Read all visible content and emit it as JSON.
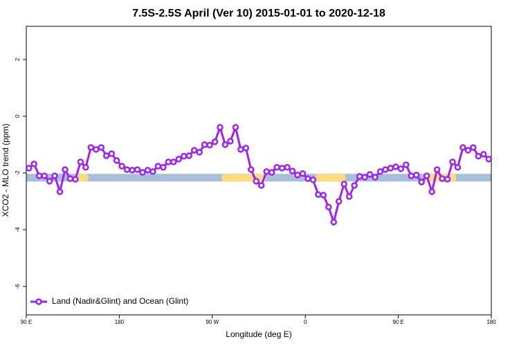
{
  "chart_data": {
    "type": "line",
    "title": "7.5S-2.5S April (Ver 10)   2015-01-01 to 2020-12-18",
    "x_label": "Longitude (deg E)",
    "y_label": "XCO2 - MLO trend (ppm)",
    "x": [
      92.5,
      97.5,
      102.5,
      107.5,
      112.5,
      117.5,
      122.5,
      127.5,
      132.5,
      137.5,
      142.5,
      147.5,
      152.5,
      157.5,
      162.5,
      167.5,
      172.5,
      177.5,
      182.5,
      187.5,
      192.5,
      197.5,
      202.5,
      207.5,
      212.5,
      217.5,
      222.5,
      227.5,
      232.5,
      237.5,
      242.5,
      247.5,
      252.5,
      257.5,
      262.5,
      267.5,
      272.5,
      277.5,
      282.5,
      287.5,
      292.5,
      297.5,
      302.5,
      307.5,
      312.5,
      317.5,
      322.5,
      327.5,
      332.5,
      337.5,
      342.5,
      347.5,
      352.5,
      357.5,
      362.5,
      367.5,
      372.5,
      377.5,
      382.5,
      387.5,
      392.5,
      397.5,
      402.5,
      407.5,
      412.5,
      417.5,
      422.5,
      427.5,
      432.5,
      437.5,
      442.5,
      447.5,
      452.5,
      457.5,
      462.5,
      467.5,
      472.5,
      477.5,
      482.5,
      487.5,
      492.5,
      497.5,
      502.5,
      507.5,
      512.5,
      517.5,
      522.5,
      527.5,
      532.5,
      537.5
    ],
    "series": [
      {
        "name": "Land (Nadir&Glint) and Ocean (Glint)",
        "color": "#a020f0",
        "values": [
          -1.83,
          -1.68,
          -2.1,
          -2.1,
          -2.29,
          -2.1,
          -2.66,
          -1.88,
          -2.2,
          -2.22,
          -1.61,
          -1.8,
          -1.1,
          -1.17,
          -1.1,
          -1.39,
          -1.32,
          -1.56,
          -1.76,
          -1.88,
          -1.9,
          -1.88,
          -1.98,
          -1.9,
          -1.95,
          -1.76,
          -1.8,
          -1.61,
          -1.61,
          -1.51,
          -1.41,
          -1.39,
          -1.2,
          -1.27,
          -1.0,
          -1.02,
          -0.9,
          -0.39,
          -1.0,
          -0.88,
          -0.39,
          -1.17,
          -1.12,
          -1.88,
          -2.29,
          -2.44,
          -1.95,
          -1.98,
          -1.8,
          -1.83,
          -1.8,
          -1.93,
          -2.07,
          -2.02,
          -2.2,
          -2.24,
          -2.76,
          -2.78,
          -3.2,
          -3.73,
          -3.0,
          -2.39,
          -2.83,
          -2.44,
          -2.12,
          -2.15,
          -2.05,
          -2.15,
          -1.95,
          -1.88,
          -1.83,
          -1.78,
          -1.85,
          -1.71,
          -2.1,
          -2.07,
          -2.32,
          -2.1,
          -2.66,
          -1.88,
          -2.2,
          -2.22,
          -1.61,
          -1.8,
          -1.1,
          -1.2,
          -1.1,
          -1.41,
          -1.34,
          -1.51
        ]
      }
    ],
    "band": {
      "range": [
        -2.3,
        -2.03
      ],
      "color": "#a8bfdc",
      "highlight_color": "#fddc7c",
      "highlights": [
        [
          137,
          150
        ],
        [
          279,
          322
        ],
        [
          370,
          399
        ],
        [
          476,
          506
        ]
      ]
    },
    "xlim": [
      90,
      540
    ],
    "xticks": [
      {
        "value": 90,
        "label": "90 E"
      },
      180,
      {
        "value": 270,
        "label": "90 W"
      },
      {
        "value": 360,
        "label": "0"
      },
      {
        "value": 450,
        "label": "90 E"
      },
      {
        "value": 540,
        "label": "180"
      }
    ],
    "ylim": [
      -7,
      3.17
    ],
    "yticks": [
      2,
      0,
      -2,
      -4,
      -6
    ],
    "legend": "bottom-left"
  }
}
